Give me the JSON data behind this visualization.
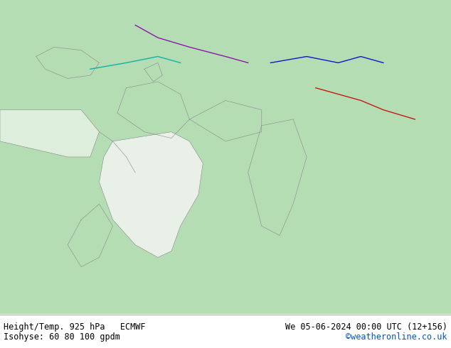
{
  "title_left": "Height/Temp. 925 hPa   ECMWF",
  "title_right": "We 05-06-2024 00:00 UTC (12+156)",
  "subtitle_left": "Isohyse: 60 80 100 gpdm",
  "subtitle_right": "©weatheronline.co.uk",
  "fig_width": 6.34,
  "fig_height": 4.9,
  "dpi": 100,
  "title_fontsize": 8.5,
  "subtitle_fontsize": 8.5,
  "subtitle_right_color": "#0055cc",
  "land_color": "#b4ddb4",
  "white_color": "#f0f0f0",
  "water_color": "#cce8ff",
  "label_color": "#000000",
  "bottom_bg": "#ffffff"
}
